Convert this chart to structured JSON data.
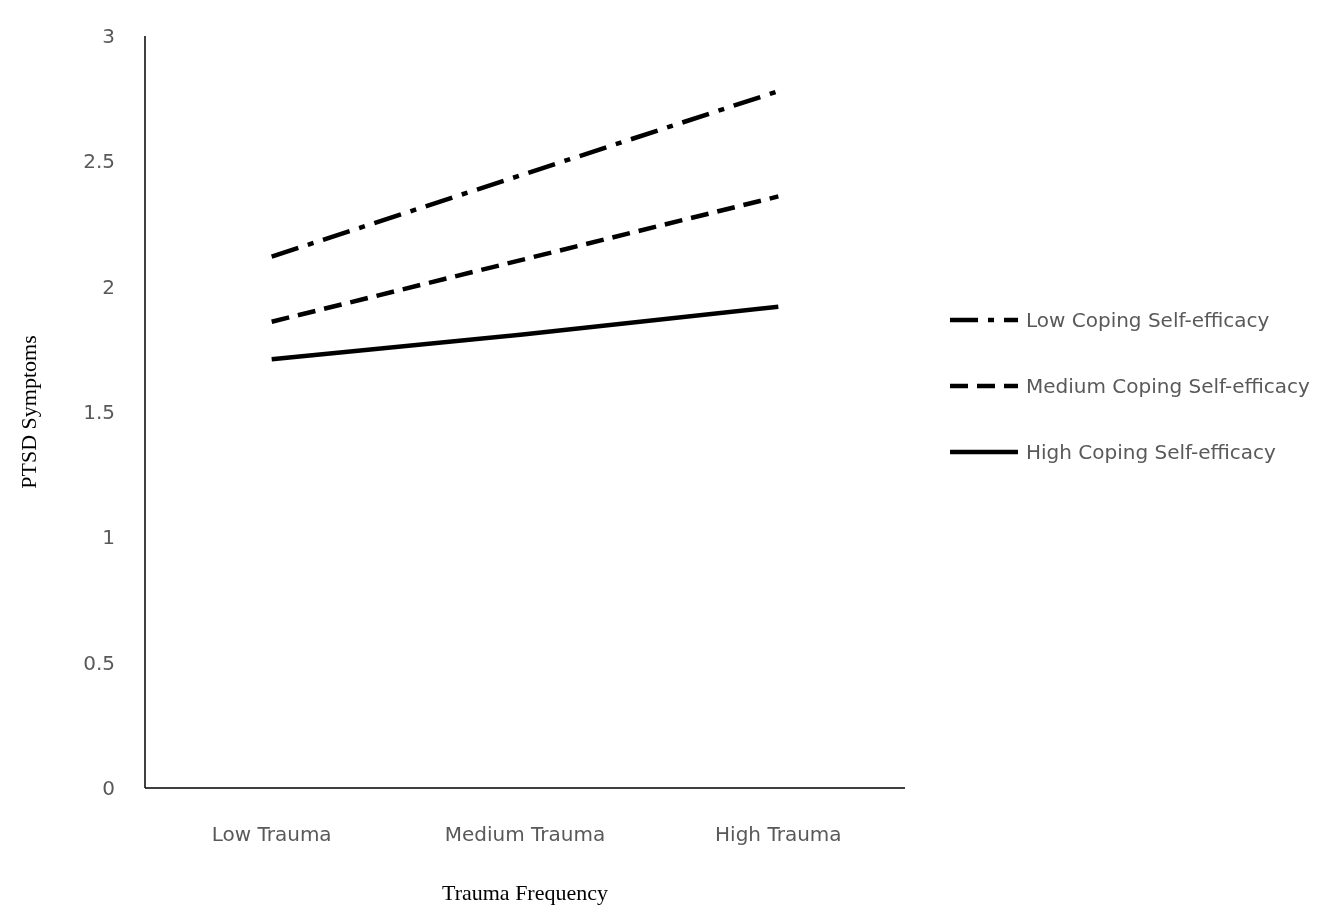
{
  "chart_data": {
    "type": "line",
    "xlabel": "Trauma Frequency",
    "ylabel": "PTSD Symptoms",
    "categories": [
      "Low Trauma",
      "Medium Trauma",
      "High Trauma"
    ],
    "series": [
      {
        "name": "Low Coping Self-efficacy",
        "color": "#000000",
        "line_style": "dashdot",
        "values": [
          2.12,
          2.45,
          2.78
        ]
      },
      {
        "name": "Medium Coping Self-efficacy",
        "color": "#000000",
        "line_style": "dashed",
        "values": [
          1.86,
          2.11,
          2.36
        ]
      },
      {
        "name": "High Coping Self-efficacy",
        "color": "#000000",
        "line_style": "solid",
        "values": [
          1.71,
          1.81,
          1.92
        ]
      }
    ],
    "ylim": [
      0,
      3
    ],
    "yticks": [
      0,
      0.5,
      1,
      1.5,
      2,
      2.5,
      3
    ],
    "grid": false,
    "legend": "right",
    "marker": "none"
  }
}
